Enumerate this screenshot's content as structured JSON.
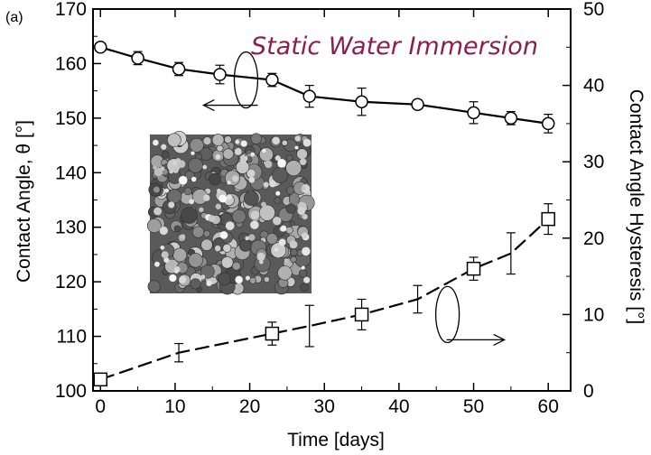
{
  "chart_data": {
    "type": "line",
    "panel_label": "(a)",
    "title": "Static Water Immersion",
    "title_color": "#8a1e52",
    "xlabel": "Time [days]",
    "ylabel_left": "Contact Angle, θ [°]",
    "ylabel_right": "Contact Angle Hysteresis [°]",
    "xlim": [
      -1,
      63
    ],
    "ylim_left": [
      100,
      170
    ],
    "ylim_right": [
      0,
      50
    ],
    "x_ticks": [
      0,
      10,
      20,
      30,
      40,
      50,
      60
    ],
    "y_ticks_left": [
      100,
      110,
      120,
      130,
      140,
      150,
      160,
      170
    ],
    "y_ticks_right": [
      0,
      10,
      20,
      30,
      40,
      50
    ],
    "inset": "SEM micrograph of the superhydrophobic surface",
    "series": [
      {
        "axis": "left",
        "marker": "circle",
        "line": "solid",
        "points": [
          {
            "x": 0,
            "y": 163,
            "err": 0
          },
          {
            "x": 5,
            "y": 161,
            "err": 1.2
          },
          {
            "x": 10.5,
            "y": 159,
            "err": 1.2
          },
          {
            "x": 16,
            "y": 158,
            "err": 1.7
          },
          {
            "x": 23,
            "y": 157,
            "err": 1.2
          },
          {
            "x": 28,
            "y": 154,
            "err": 2.0
          },
          {
            "x": 35,
            "y": 153,
            "err": 2.5
          },
          {
            "x": 42.5,
            "y": 152.5,
            "err": 0.8
          },
          {
            "x": 50,
            "y": 151,
            "err": 2.0
          },
          {
            "x": 55,
            "y": 150,
            "err": 1.2
          },
          {
            "x": 60,
            "y": 149,
            "err": 1.7
          }
        ]
      },
      {
        "axis": "right",
        "marker": "square",
        "line": "dashed",
        "points": [
          {
            "x": 0,
            "y": 1.5,
            "err": 0,
            "marker": true
          },
          {
            "x": 10.5,
            "y": 5,
            "err": 1.2,
            "marker": false
          },
          {
            "x": 23,
            "y": 7.5,
            "err": 1.5,
            "marker": true
          },
          {
            "x": 28,
            "y": 8.5,
            "err": 2.7,
            "marker": false
          },
          {
            "x": 35,
            "y": 10,
            "err": 2.0,
            "marker": true
          },
          {
            "x": 42.5,
            "y": 12,
            "err": 1.8,
            "marker": false
          },
          {
            "x": 50,
            "y": 16,
            "err": 1.5,
            "marker": true
          },
          {
            "x": 55,
            "y": 18,
            "err": 2.7,
            "marker": false
          },
          {
            "x": 60,
            "y": 22.5,
            "err": 2.0,
            "marker": true
          }
        ]
      }
    ],
    "annotations": [
      {
        "type": "ellipse-arrow",
        "axis": "left",
        "x": 19.5,
        "y": 157,
        "points_to": "left"
      },
      {
        "type": "ellipse-arrow",
        "axis": "right",
        "x": 46.5,
        "y": 10,
        "points_to": "right"
      }
    ]
  }
}
